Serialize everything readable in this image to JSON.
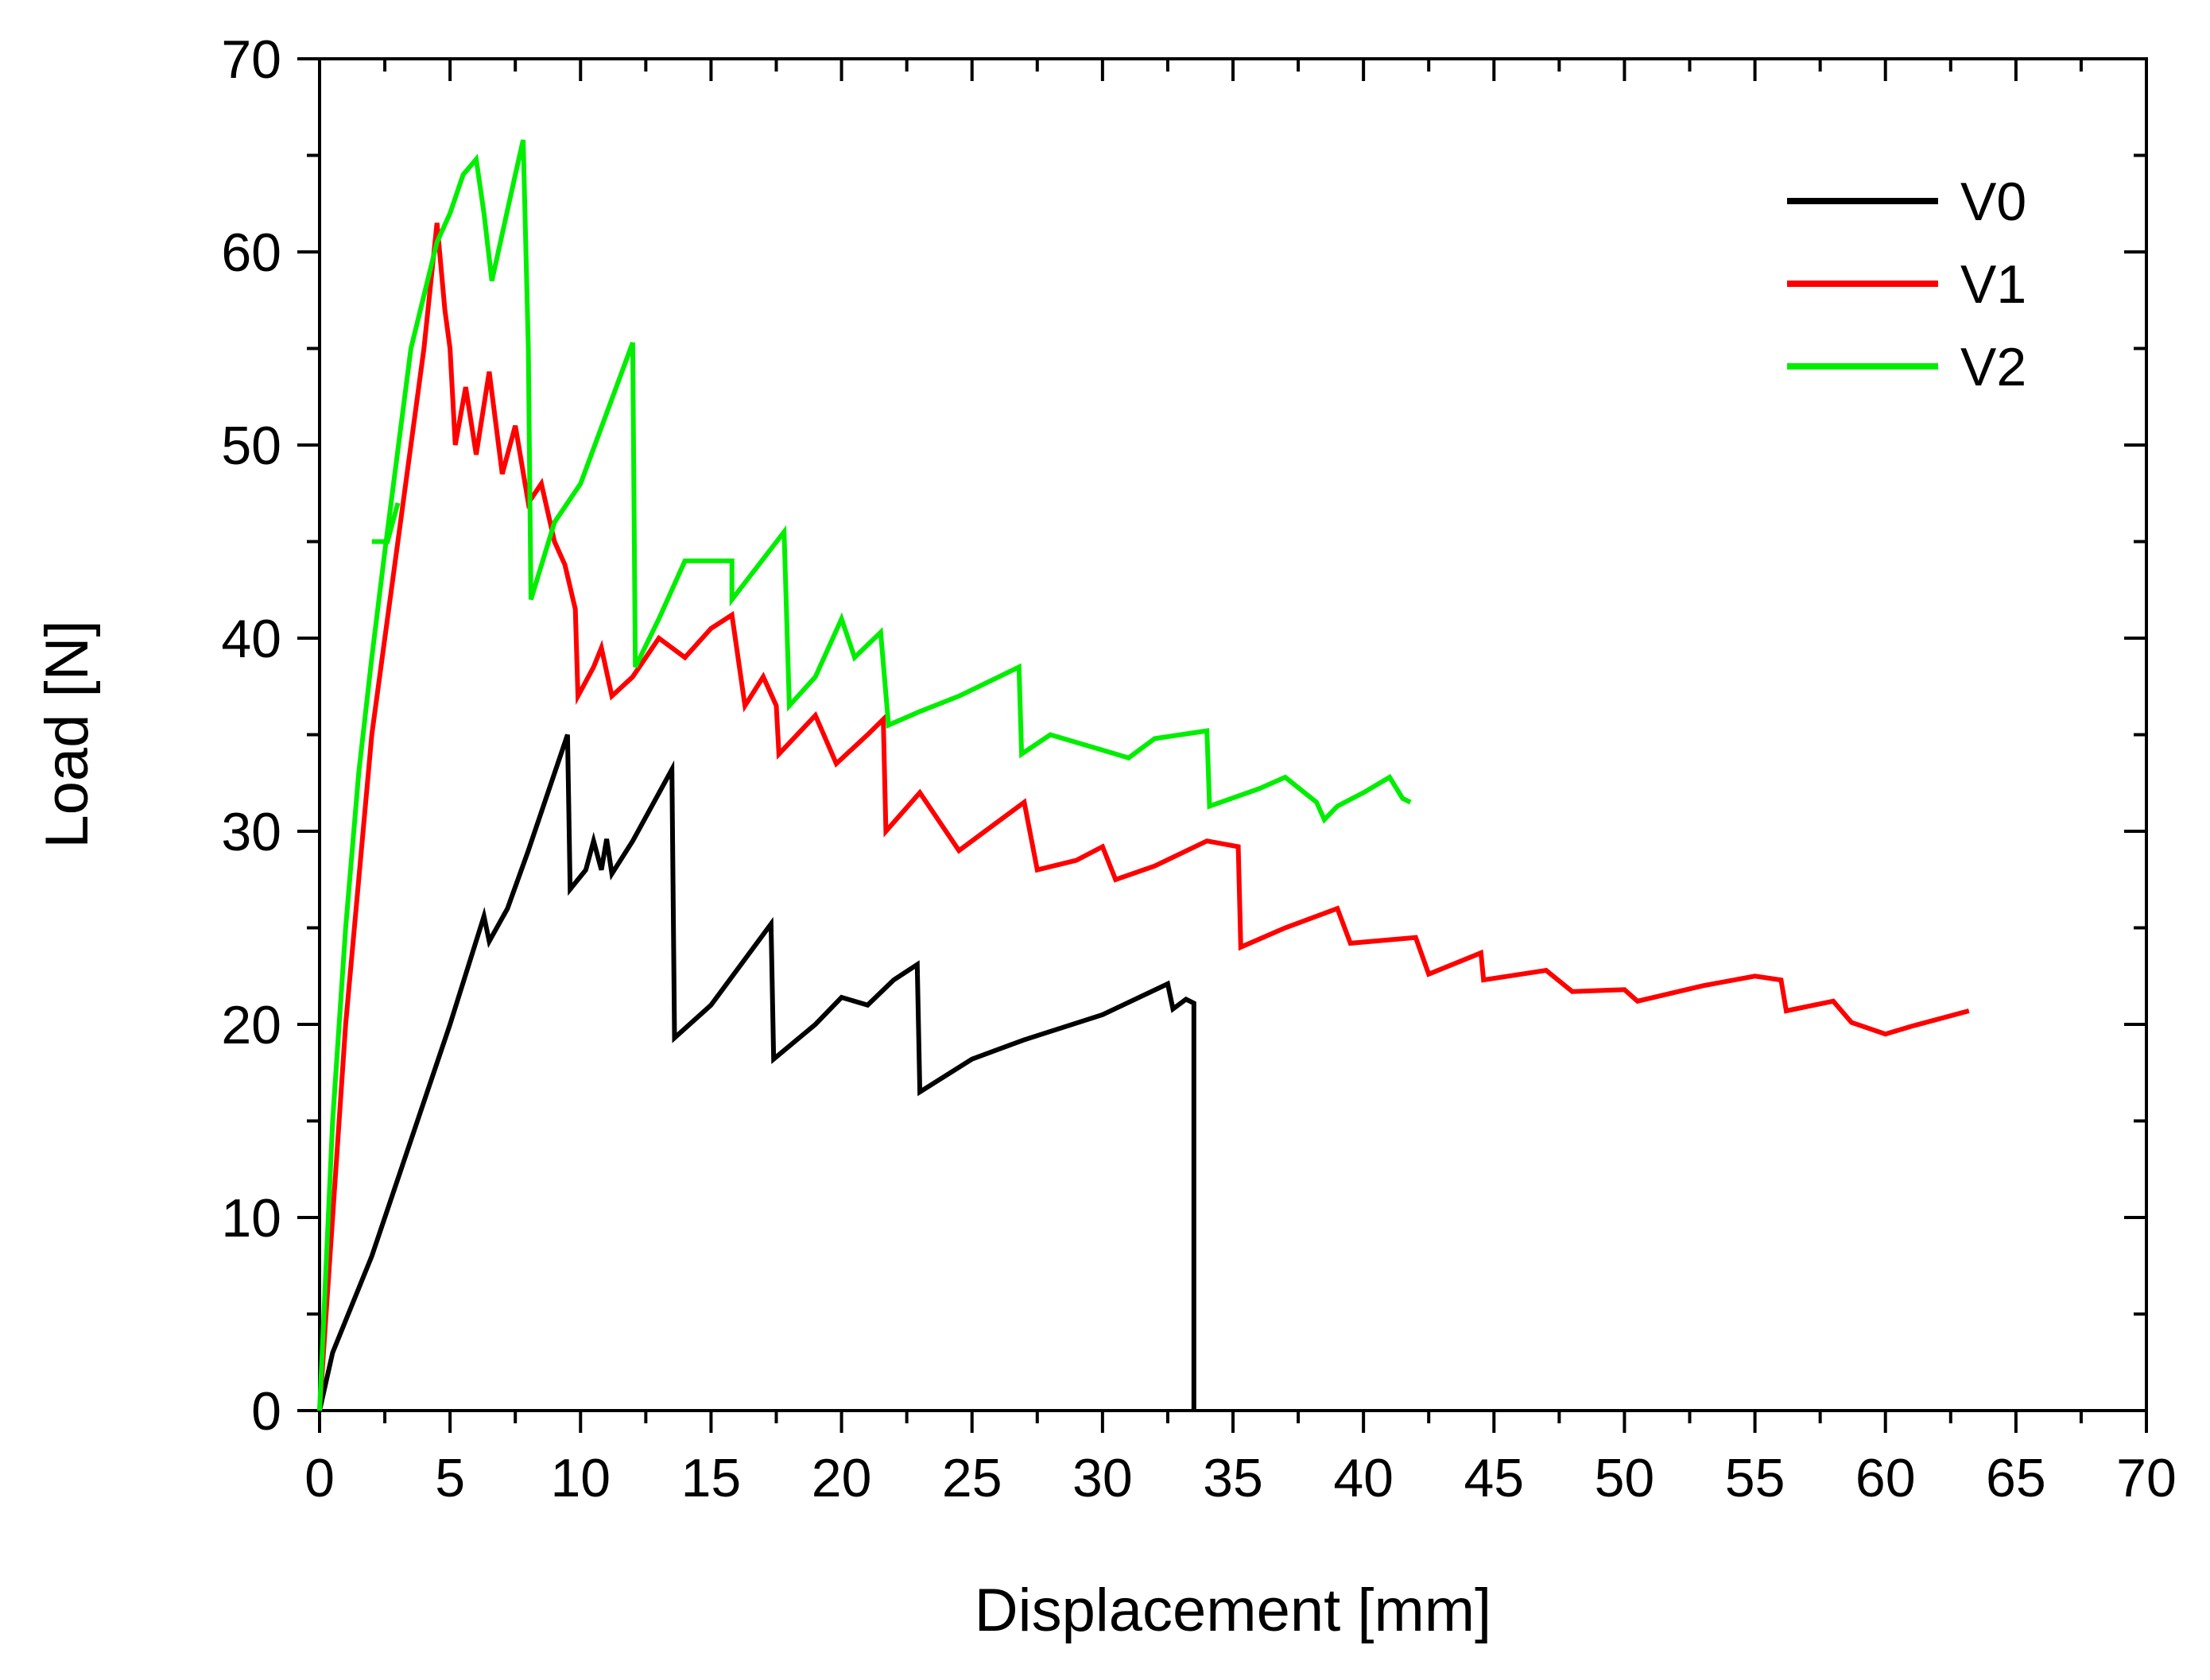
{
  "chart_data": {
    "type": "line",
    "title": "",
    "xlabel": "Displacement [mm]",
    "ylabel": "Load [N]",
    "xlim": [
      0,
      70
    ],
    "ylim": [
      0,
      70
    ],
    "xticks": [
      0,
      5,
      10,
      15,
      20,
      25,
      30,
      35,
      40,
      45,
      50,
      55,
      60,
      65,
      70
    ],
    "yticks": [
      0,
      10,
      20,
      30,
      40,
      50,
      60,
      70
    ],
    "grid": false,
    "legend_position": "top-right",
    "series": [
      {
        "name": "V0",
        "color": "#000000",
        "points": [
          [
            0,
            0
          ],
          [
            0.5,
            3
          ],
          [
            2,
            8
          ],
          [
            3.5,
            14
          ],
          [
            5,
            20
          ],
          [
            6.3,
            25.6
          ],
          [
            6.5,
            24.3
          ],
          [
            7.2,
            26
          ],
          [
            8,
            29
          ],
          [
            9.5,
            35
          ],
          [
            9.6,
            27
          ],
          [
            10.2,
            28
          ],
          [
            10.5,
            29.5
          ],
          [
            10.8,
            28
          ],
          [
            11,
            29.6
          ],
          [
            11.2,
            27.8
          ],
          [
            12,
            29.5
          ],
          [
            13.5,
            33.2
          ],
          [
            13.6,
            19.3
          ],
          [
            15,
            21
          ],
          [
            17.3,
            25.2
          ],
          [
            17.4,
            18.2
          ],
          [
            19,
            20
          ],
          [
            20,
            21.4
          ],
          [
            21,
            21
          ],
          [
            22,
            22.3
          ],
          [
            22.9,
            23.1
          ],
          [
            23,
            16.5
          ],
          [
            25,
            18.2
          ],
          [
            27,
            19.2
          ],
          [
            30,
            20.5
          ],
          [
            32.5,
            22.1
          ],
          [
            32.7,
            20.8
          ],
          [
            33.2,
            21.3
          ],
          [
            33.5,
            21.1
          ],
          [
            33.5,
            0
          ]
        ]
      },
      {
        "name": "V1",
        "color": "#ff0000",
        "points": [
          [
            0,
            0
          ],
          [
            1,
            20
          ],
          [
            2,
            35
          ],
          [
            3,
            45
          ],
          [
            4,
            55
          ],
          [
            4.5,
            61.5
          ],
          [
            4.8,
            57
          ],
          [
            5,
            55
          ],
          [
            5.2,
            50
          ],
          [
            5.6,
            53
          ],
          [
            6,
            49.5
          ],
          [
            6.5,
            53.8
          ],
          [
            7,
            48.5
          ],
          [
            7.5,
            51
          ],
          [
            8,
            47
          ],
          [
            8.5,
            48
          ],
          [
            9,
            45
          ],
          [
            9.4,
            43.8
          ],
          [
            9.8,
            41.5
          ],
          [
            9.9,
            37
          ],
          [
            10.5,
            38.5
          ],
          [
            10.8,
            39.5
          ],
          [
            11.2,
            37
          ],
          [
            12,
            38
          ],
          [
            13,
            40
          ],
          [
            14,
            39
          ],
          [
            15,
            40.5
          ],
          [
            15.8,
            41.2
          ],
          [
            16.3,
            36.5
          ],
          [
            17,
            38
          ],
          [
            17.5,
            36.5
          ],
          [
            17.6,
            34
          ],
          [
            19,
            36
          ],
          [
            19.8,
            33.5
          ],
          [
            21,
            35
          ],
          [
            21.6,
            35.8
          ],
          [
            21.7,
            30
          ],
          [
            23,
            32
          ],
          [
            24.5,
            29
          ],
          [
            26,
            30.5
          ],
          [
            27,
            31.5
          ],
          [
            27.5,
            28
          ],
          [
            29,
            28.5
          ],
          [
            30,
            29.2
          ],
          [
            30.5,
            27.5
          ],
          [
            32,
            28.2
          ],
          [
            34,
            29.5
          ],
          [
            35.2,
            29.2
          ],
          [
            35.3,
            24
          ],
          [
            37,
            25
          ],
          [
            39,
            26
          ],
          [
            39.5,
            24.2
          ],
          [
            42,
            24.5
          ],
          [
            42.5,
            22.6
          ],
          [
            44.5,
            23.7
          ],
          [
            44.6,
            22.3
          ],
          [
            47,
            22.8
          ],
          [
            48,
            21.7
          ],
          [
            50,
            21.8
          ],
          [
            50.5,
            21.2
          ],
          [
            53,
            22
          ],
          [
            55,
            22.5
          ],
          [
            56,
            22.3
          ],
          [
            56.2,
            20.7
          ],
          [
            58,
            21.2
          ],
          [
            58.7,
            20.1
          ],
          [
            60,
            19.5
          ],
          [
            61,
            19.9
          ],
          [
            63.2,
            20.7
          ]
        ]
      },
      {
        "name": "V2",
        "color": "#00ee00",
        "points": [
          [
            0,
            0
          ],
          [
            0.5,
            15
          ],
          [
            1,
            25
          ],
          [
            1.5,
            33
          ],
          [
            2,
            39
          ],
          [
            2.5,
            44.5
          ],
          [
            3.5,
            55
          ],
          [
            4.5,
            60.5
          ],
          [
            5,
            62
          ],
          [
            5.5,
            64
          ],
          [
            6,
            64.8
          ],
          [
            6.3,
            62
          ],
          [
            6.6,
            58.5
          ],
          [
            7.5,
            64
          ],
          [
            7.8,
            65.8
          ],
          [
            8,
            55
          ],
          [
            8.1,
            42
          ],
          [
            9,
            46
          ],
          [
            10,
            48
          ],
          [
            12,
            55.3
          ],
          [
            12.1,
            38.5
          ],
          [
            13,
            41
          ],
          [
            14,
            44
          ],
          [
            15.8,
            44
          ],
          [
            15.8,
            42
          ],
          [
            17.8,
            45.5
          ],
          [
            18,
            36.5
          ],
          [
            19,
            38
          ],
          [
            20,
            41
          ],
          [
            20.5,
            39
          ],
          [
            21.5,
            40.3
          ],
          [
            21.8,
            35.5
          ],
          [
            23,
            36.2
          ],
          [
            24.5,
            37
          ],
          [
            26.8,
            38.5
          ],
          [
            26.9,
            34
          ],
          [
            28,
            35
          ],
          [
            30,
            34.2
          ],
          [
            31,
            33.8
          ],
          [
            32,
            34.8
          ],
          [
            33,
            35
          ],
          [
            34,
            35.2
          ],
          [
            34.1,
            31.3
          ],
          [
            36,
            32.2
          ],
          [
            37,
            32.8
          ],
          [
            38.2,
            31.5
          ],
          [
            38.5,
            30.6
          ],
          [
            39,
            31.3
          ],
          [
            40,
            32
          ],
          [
            41,
            32.8
          ],
          [
            41.5,
            31.7
          ],
          [
            41.8,
            31.5
          ]
        ]
      },
      {
        "name": "",
        "color": "#00ee00",
        "points": [
          [
            2,
            45
          ],
          [
            2.6,
            45
          ],
          [
            3,
            47
          ]
        ]
      }
    ]
  }
}
